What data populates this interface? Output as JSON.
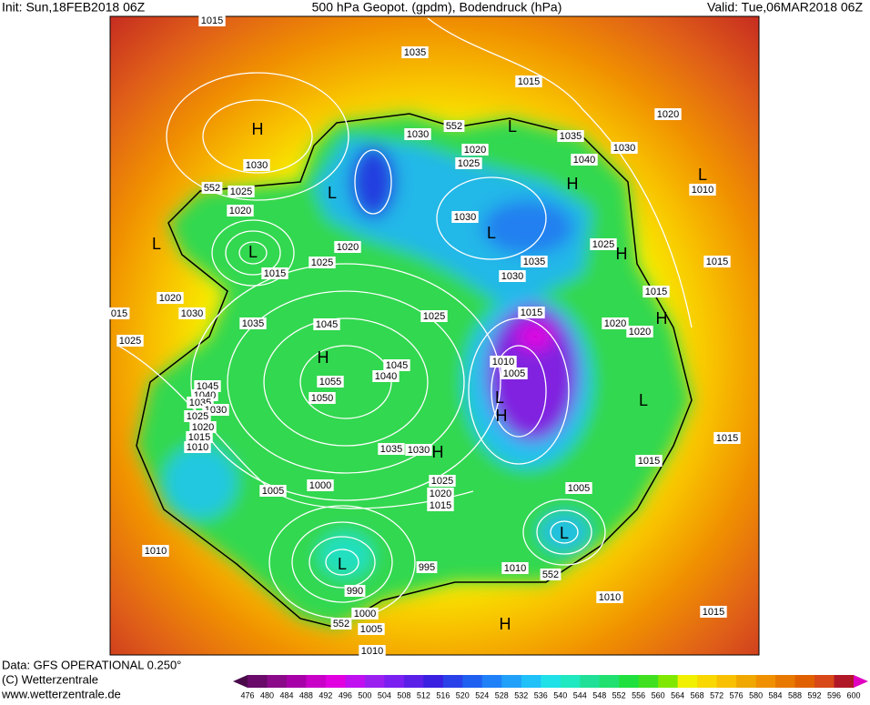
{
  "header": {
    "init": "Init: Sun,18FEB2018 06Z",
    "title": "500 hPa Geopot. (gpdm), Bodendruck (hPa)",
    "valid": "Valid: Tue,06MAR2018 06Z"
  },
  "footer": {
    "data": "Data: GFS OPERATIONAL 0.250°",
    "copyright": "(C) Wetterzentrale",
    "url": "www.wetterzentrale.de"
  },
  "colorbar": {
    "labels": [
      476,
      480,
      484,
      488,
      492,
      496,
      500,
      504,
      508,
      512,
      516,
      520,
      524,
      528,
      532,
      536,
      540,
      544,
      548,
      552,
      556,
      560,
      564,
      568,
      572,
      576,
      580,
      584,
      588,
      592,
      596,
      600
    ],
    "colors": [
      "#4a0a4a",
      "#6a0a6a",
      "#8a0a8a",
      "#a800a8",
      "#c800c8",
      "#e000e0",
      "#c010f0",
      "#9a20f0",
      "#7a20f0",
      "#5a20e8",
      "#3a20e0",
      "#2a40e8",
      "#2060f0",
      "#2080f8",
      "#20a0f8",
      "#20c0f8",
      "#20e0e8",
      "#20e8c0",
      "#20e098",
      "#20e070",
      "#20e040",
      "#40e020",
      "#80e800",
      "#f0f000",
      "#f8d800",
      "#f8c000",
      "#f0a800",
      "#f09000",
      "#e87800",
      "#e06000",
      "#d84818",
      "#b01828",
      "#e000c0"
    ]
  },
  "map": {
    "labels": [
      "1015",
      "1035",
      "1015",
      "1020",
      "H",
      "552",
      "L",
      "1030",
      "1035",
      "1030",
      "1020",
      "1025",
      "1040",
      "1030",
      "552",
      "1025",
      "L",
      "H",
      "L",
      "1010",
      "1020",
      "1030",
      "L",
      "L",
      "L",
      "1020",
      "1025",
      "H",
      "1025",
      "1035",
      "1015",
      "1015",
      "1030",
      "1015",
      "1020",
      "015",
      "1030",
      "1015",
      "1025",
      "H",
      "1035",
      "1045",
      "1020",
      "1020",
      "1025",
      "H",
      "1010",
      "1045",
      "1005",
      "1040",
      "1055",
      "1045",
      "1040",
      "L",
      "L",
      "1050",
      "1035",
      "1030",
      "H",
      "1025",
      "1020",
      "1015",
      "1010",
      "1015",
      "1035",
      "1030",
      "H",
      "1015",
      "1025",
      "1005",
      "1000",
      "1005",
      "1020",
      "1015",
      "L",
      "1010",
      "L",
      "995",
      "1010",
      "552",
      "990",
      "1010",
      "1000",
      "1015",
      "552",
      "H",
      "1005",
      "1010"
    ]
  }
}
